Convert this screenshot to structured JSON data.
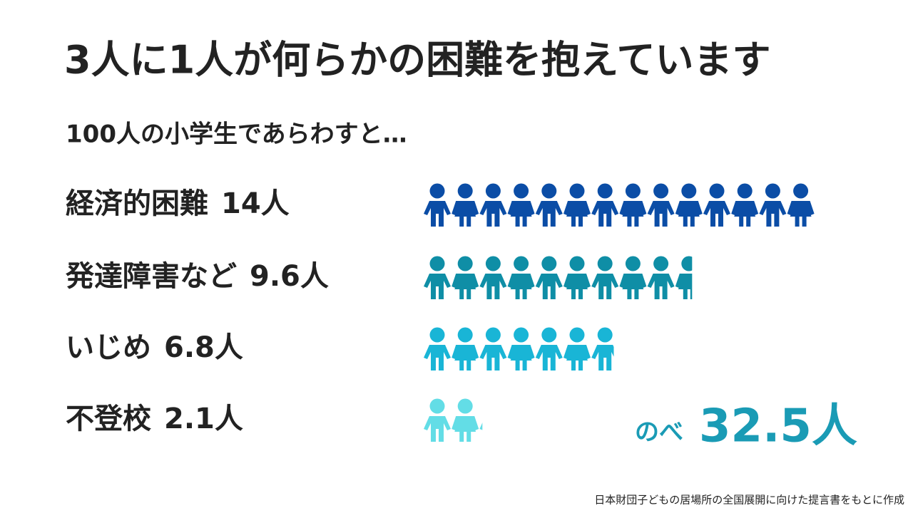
{
  "chart_data": {
    "type": "pictograph",
    "title": "3人に1人が何らかの困難を抱えています",
    "subtitle": "100人の小学生であらわすと…",
    "categories": [
      "経済的困難",
      "発達障害など",
      "いじめ",
      "不登校"
    ],
    "values": [
      14,
      9.6,
      6.8,
      2.1
    ],
    "value_labels": [
      "14人",
      "9.6人",
      "6.8人",
      "2.1人"
    ],
    "colors": [
      "#0b4da6",
      "#0f8ea6",
      "#19b5d6",
      "#63dde6"
    ],
    "total": {
      "prefix": "のべ",
      "value": 32.5,
      "label": "32.5人"
    },
    "source": "日本財団子どもの居場所の全国展開に向けた提言書をもとに作成"
  }
}
